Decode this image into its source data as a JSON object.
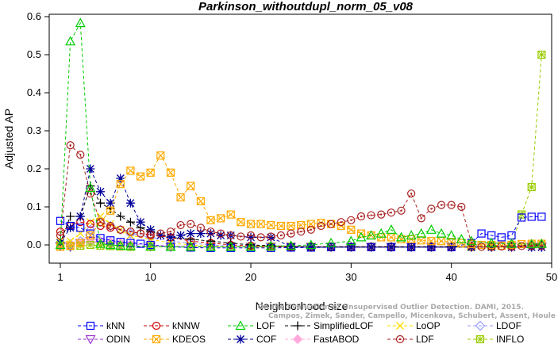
{
  "chart_data": {
    "type": "line",
    "title": "Parkinson_withoutdupl_norm_05_v08",
    "xlabel": "Neighborhood size",
    "ylabel": "Adjusted AP",
    "xlim": [
      1,
      50
    ],
    "ylim": [
      -0.04,
      0.6
    ],
    "xticks": [
      1,
      10,
      20,
      30,
      40,
      50
    ],
    "yticks": [
      0.0,
      0.1,
      0.2,
      0.3,
      0.4,
      0.5,
      0.6
    ],
    "xtick_labels": [
      "1",
      "10",
      "20",
      "30",
      "40",
      "50"
    ],
    "ytick_labels": [
      "0.0",
      "0.1",
      "0.2",
      "0.3",
      "0.4",
      "0.5",
      "0.6"
    ],
    "grid": false,
    "legend_position": "bottom",
    "series": [
      {
        "name": "kNN",
        "color": "#0000ff",
        "marker": "square",
        "x": [
          1,
          2,
          3,
          4,
          5,
          6,
          7,
          8,
          9,
          10,
          12,
          14,
          16,
          18,
          20,
          22,
          24,
          26,
          28,
          30,
          32,
          34,
          36,
          38,
          40,
          42,
          43,
          44,
          45,
          46,
          47,
          48,
          49
        ],
        "values": [
          0.063,
          0.05,
          0.045,
          0.03,
          0.018,
          0.012,
          0.008,
          0.005,
          0.003,
          0.0,
          -0.005,
          -0.007,
          -0.008,
          -0.008,
          -0.008,
          -0.008,
          -0.007,
          -0.007,
          -0.006,
          -0.006,
          -0.006,
          -0.006,
          -0.006,
          -0.006,
          -0.006,
          0.005,
          0.03,
          0.025,
          0.02,
          0.025,
          0.072,
          0.074,
          0.074
        ]
      },
      {
        "name": "kNNW",
        "color": "#cc0000",
        "marker": "circle",
        "x": [
          1,
          2,
          3,
          4,
          5,
          6,
          7,
          8,
          9,
          10,
          12,
          14,
          16,
          18,
          20,
          22,
          24,
          26,
          28,
          30,
          32,
          34,
          36,
          38,
          40,
          42,
          44,
          46,
          48,
          49
        ],
        "values": [
          0.035,
          0.05,
          0.06,
          0.055,
          0.05,
          0.045,
          0.04,
          0.035,
          0.03,
          0.025,
          0.02,
          0.01,
          0.005,
          0.0,
          -0.002,
          -0.004,
          -0.005,
          -0.005,
          -0.005,
          -0.005,
          -0.005,
          -0.005,
          -0.005,
          -0.005,
          -0.005,
          -0.005,
          -0.005,
          -0.005,
          -0.003,
          -0.002
        ]
      },
      {
        "name": "LOF",
        "color": "#00cc00",
        "marker": "triangle",
        "x": [
          1,
          2,
          3,
          4,
          5,
          6,
          7,
          8,
          10,
          12,
          14,
          16,
          18,
          20,
          22,
          24,
          26,
          28,
          30,
          31,
          32,
          33,
          34,
          35,
          36,
          37,
          38,
          39,
          40,
          41,
          42,
          44,
          46,
          48,
          49
        ],
        "values": [
          0.0,
          0.535,
          0.583,
          0.15,
          0.003,
          0.0,
          -0.002,
          -0.003,
          -0.004,
          -0.005,
          -0.005,
          -0.005,
          -0.005,
          -0.005,
          -0.003,
          -0.002,
          0.0,
          0.005,
          0.01,
          0.02,
          0.025,
          0.03,
          0.04,
          0.02,
          0.025,
          0.03,
          0.04,
          0.03,
          0.025,
          0.015,
          0.01,
          0.005,
          0.003,
          0.002,
          0.003
        ]
      },
      {
        "name": "SimplifiedLOF",
        "color": "#000000",
        "marker": "plus",
        "x": [
          1,
          2,
          3,
          4,
          5,
          6,
          7,
          8,
          9,
          10,
          12,
          14,
          16,
          18,
          20,
          22,
          24,
          26,
          28,
          30,
          32,
          34,
          36,
          38,
          40,
          42,
          44,
          46,
          48,
          49
        ],
        "values": [
          0.005,
          0.075,
          0.075,
          0.155,
          0.11,
          0.095,
          0.075,
          0.06,
          0.045,
          0.035,
          0.02,
          0.015,
          0.01,
          0.005,
          0.0,
          -0.002,
          -0.004,
          -0.005,
          -0.005,
          -0.005,
          -0.005,
          -0.005,
          -0.005,
          -0.005,
          -0.005,
          -0.005,
          -0.004,
          -0.003,
          0.0,
          0.0
        ]
      },
      {
        "name": "LoOP",
        "color": "#ffdd00",
        "marker": "x",
        "x": [
          1,
          2,
          3,
          4,
          5,
          6,
          7,
          8,
          10,
          12,
          14,
          16,
          18,
          20,
          22,
          24,
          26,
          28,
          30,
          32,
          34,
          36,
          38,
          40,
          42,
          44,
          46,
          48,
          49
        ],
        "values": [
          0.01,
          0.01,
          0.03,
          0.06,
          0.075,
          0.055,
          0.04,
          0.025,
          0.015,
          0.005,
          0.0,
          -0.003,
          -0.005,
          -0.006,
          -0.006,
          -0.006,
          -0.006,
          -0.006,
          -0.006,
          -0.006,
          -0.006,
          -0.006,
          -0.006,
          -0.006,
          -0.006,
          -0.006,
          -0.006,
          -0.006,
          -0.006
        ]
      },
      {
        "name": "LDOF",
        "color": "#9999ff",
        "marker": "diamond",
        "x": [
          1,
          2,
          3,
          4,
          5,
          6,
          7,
          8,
          10,
          12,
          14,
          16,
          18,
          20,
          22,
          24,
          26,
          28,
          30,
          32,
          34,
          36,
          38,
          40,
          42,
          44,
          46,
          48,
          49
        ],
        "values": [
          0.005,
          0.002,
          0.01,
          0.04,
          0.06,
          0.05,
          0.04,
          0.03,
          0.02,
          0.01,
          0.005,
          0.0,
          -0.003,
          -0.004,
          -0.005,
          -0.005,
          -0.005,
          -0.005,
          -0.005,
          -0.005,
          -0.005,
          -0.005,
          -0.005,
          -0.005,
          -0.005,
          -0.005,
          -0.005,
          -0.005,
          -0.005
        ]
      },
      {
        "name": "ODIN",
        "color": "#9933cc",
        "marker": "triangle-down",
        "x": [
          1,
          2,
          3,
          4,
          5,
          6,
          7,
          8,
          10,
          12,
          14,
          16,
          18,
          20,
          22,
          24,
          26,
          28,
          30,
          32,
          34,
          36,
          38,
          40,
          42,
          44,
          46,
          48,
          49
        ],
        "values": [
          -0.003,
          -0.005,
          0.005,
          0.01,
          0.005,
          0.0,
          -0.002,
          -0.003,
          -0.004,
          -0.005,
          -0.005,
          -0.005,
          -0.005,
          -0.005,
          -0.005,
          -0.005,
          -0.005,
          -0.005,
          -0.005,
          -0.005,
          -0.005,
          -0.005,
          -0.005,
          -0.005,
          -0.005,
          -0.005,
          -0.005,
          -0.005,
          -0.005
        ]
      },
      {
        "name": "KDEOS",
        "color": "#ffaa00",
        "marker": "square-x",
        "x": [
          1,
          2,
          3,
          4,
          5,
          6,
          7,
          8,
          9,
          10,
          11,
          12,
          13,
          14,
          15,
          16,
          17,
          18,
          19,
          20,
          21,
          22,
          23,
          24,
          25,
          26,
          27,
          28,
          29,
          30,
          31,
          32,
          33,
          34,
          35,
          36,
          37,
          38,
          39,
          40,
          41,
          42,
          43,
          44,
          45,
          46,
          47,
          48,
          49
        ],
        "values": [
          -0.005,
          -0.002,
          0.005,
          0.025,
          0.06,
          0.09,
          0.16,
          0.195,
          0.18,
          0.19,
          0.235,
          0.19,
          0.125,
          0.155,
          0.115,
          0.065,
          0.07,
          0.08,
          0.06,
          0.055,
          0.055,
          0.052,
          0.05,
          0.05,
          0.052,
          0.055,
          0.058,
          0.055,
          0.05,
          0.04,
          0.03,
          0.025,
          0.02,
          0.02,
          0.015,
          0.015,
          0.012,
          0.01,
          0.01,
          0.008,
          0.005,
          0.002,
          0.0,
          0.0,
          -0.002,
          0.0,
          0.002,
          0.003,
          0.003
        ]
      },
      {
        "name": "COF",
        "color": "#000099",
        "marker": "star",
        "x": [
          1,
          2,
          3,
          4,
          5,
          6,
          7,
          8,
          9,
          10,
          11,
          12,
          13,
          14,
          15,
          16,
          17,
          18,
          20,
          22,
          24,
          26,
          28,
          30,
          32,
          34,
          36,
          38,
          40,
          42,
          44,
          46,
          48,
          49
        ],
        "values": [
          0.005,
          0.045,
          0.075,
          0.2,
          0.14,
          0.11,
          0.175,
          0.11,
          0.06,
          0.04,
          0.025,
          0.02,
          0.025,
          0.03,
          0.03,
          0.03,
          0.025,
          0.025,
          0.02,
          0.02,
          -0.005,
          -0.006,
          -0.006,
          -0.006,
          -0.006,
          -0.006,
          -0.006,
          -0.006,
          -0.006,
          -0.006,
          -0.006,
          -0.006,
          -0.006,
          -0.006
        ]
      },
      {
        "name": "FastABOD",
        "color": "#ffaadd",
        "marker": "diamond-filled",
        "x": [
          1,
          2,
          3,
          4,
          5,
          6,
          7,
          8,
          10,
          12,
          14,
          16,
          18,
          20,
          22,
          24,
          26,
          28,
          30,
          32,
          34,
          36,
          38,
          40,
          42,
          44,
          46,
          48,
          49
        ],
        "values": [
          0.003,
          0.002,
          0.004,
          0.008,
          0.01,
          0.008,
          0.005,
          0.002,
          0.0,
          -0.002,
          -0.003,
          -0.004,
          -0.004,
          -0.004,
          -0.004,
          -0.004,
          -0.004,
          -0.004,
          -0.004,
          -0.004,
          -0.004,
          -0.004,
          -0.004,
          -0.004,
          -0.004,
          -0.004,
          -0.004,
          -0.004,
          -0.004
        ]
      },
      {
        "name": "LDF",
        "color": "#aa2222",
        "marker": "circle-dot",
        "x": [
          1,
          2,
          3,
          4,
          5,
          6,
          7,
          8,
          9,
          10,
          11,
          12,
          13,
          14,
          15,
          16,
          17,
          18,
          19,
          20,
          21,
          22,
          23,
          24,
          25,
          26,
          27,
          28,
          29,
          30,
          31,
          32,
          33,
          34,
          35,
          36,
          37,
          38,
          39,
          40,
          41,
          42,
          43,
          44,
          45,
          46,
          47,
          48,
          49
        ],
        "values": [
          0.025,
          0.262,
          0.237,
          0.135,
          0.06,
          0.05,
          0.04,
          0.035,
          0.03,
          0.028,
          0.03,
          0.035,
          0.052,
          0.055,
          0.045,
          0.035,
          0.03,
          0.025,
          0.022,
          0.025,
          0.02,
          0.022,
          0.025,
          0.03,
          0.035,
          0.04,
          0.05,
          0.055,
          0.06,
          0.065,
          0.075,
          0.078,
          0.08,
          0.085,
          0.09,
          0.135,
          0.07,
          0.095,
          0.105,
          0.105,
          0.1,
          0.005,
          -0.005,
          -0.005,
          -0.004,
          -0.004,
          -0.003,
          -0.002,
          -0.002
        ]
      },
      {
        "name": "INFLO",
        "color": "#99cc00",
        "marker": "star-box",
        "x": [
          1,
          2,
          3,
          4,
          5,
          6,
          7,
          8,
          10,
          12,
          14,
          16,
          18,
          20,
          22,
          24,
          26,
          28,
          30,
          32,
          34,
          36,
          38,
          40,
          42,
          44,
          46,
          47,
          48,
          49
        ],
        "values": [
          0.0,
          -0.003,
          -0.002,
          0.0,
          -0.002,
          -0.003,
          -0.004,
          -0.005,
          -0.005,
          -0.005,
          -0.005,
          -0.005,
          -0.005,
          -0.005,
          -0.005,
          -0.005,
          -0.005,
          -0.005,
          -0.005,
          -0.005,
          -0.005,
          -0.005,
          -0.005,
          -0.005,
          -0.005,
          -0.003,
          0.0,
          0.08,
          0.152,
          0.5
        ]
      }
    ]
  },
  "legend": {
    "row1": [
      "kNN",
      "kNNW",
      "LOF",
      "SimplifiedLOF",
      "LoOP",
      "LDOF"
    ],
    "row2": [
      "ODIN",
      "KDEOS",
      "COF",
      "FastABOD",
      "LDF",
      "INFLO"
    ]
  },
  "watermark": {
    "line1": "Campos, Zimek, Sander, Campello, Micenkova, Schubert, Assent, Houle",
    "line2": "On the Evaluation of Unsupervised Outlier Detection. DAMI, 2015."
  }
}
